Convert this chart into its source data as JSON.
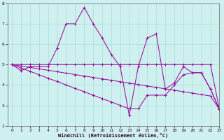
{
  "xlabel": "Windchill (Refroidissement éolien,°C)",
  "background_color": "#cef0ee",
  "grid_color": "#aadddd",
  "line_color": "#990099",
  "xlim": [
    -0.5,
    23
  ],
  "ylim": [
    2,
    8
  ],
  "yticks": [
    2,
    3,
    4,
    5,
    6,
    7,
    8
  ],
  "xticks": [
    0,
    1,
    2,
    3,
    4,
    5,
    6,
    7,
    8,
    9,
    10,
    11,
    12,
    13,
    14,
    15,
    16,
    17,
    18,
    19,
    20,
    21,
    22,
    23
  ],
  "series": [
    [
      5.0,
      4.7,
      4.9,
      4.9,
      4.9,
      5.8,
      7.0,
      7.0,
      7.8,
      7.0,
      6.3,
      5.5,
      4.9,
      2.5,
      4.9,
      6.3,
      6.5,
      3.8,
      4.1,
      4.9,
      4.6,
      4.6,
      3.8,
      2.8
    ],
    [
      5.0,
      5.0,
      5.0,
      5.0,
      5.0,
      5.0,
      5.0,
      5.0,
      5.0,
      5.0,
      5.0,
      5.0,
      5.0,
      5.0,
      5.0,
      5.0,
      5.0,
      5.0,
      5.0,
      5.0,
      5.0,
      5.0,
      5.0,
      2.8
    ],
    [
      5.0,
      4.93,
      4.86,
      4.79,
      4.72,
      4.65,
      4.58,
      4.51,
      4.44,
      4.37,
      4.3,
      4.23,
      4.16,
      4.09,
      4.02,
      3.95,
      3.88,
      3.81,
      3.74,
      3.67,
      3.6,
      3.53,
      3.46,
      2.8
    ],
    [
      5.0,
      4.83,
      4.67,
      4.5,
      4.33,
      4.17,
      4.0,
      3.83,
      3.67,
      3.5,
      3.33,
      3.17,
      3.0,
      2.83,
      2.83,
      3.5,
      3.5,
      3.5,
      4.0,
      4.5,
      4.6,
      4.6,
      3.8,
      2.8
    ]
  ]
}
